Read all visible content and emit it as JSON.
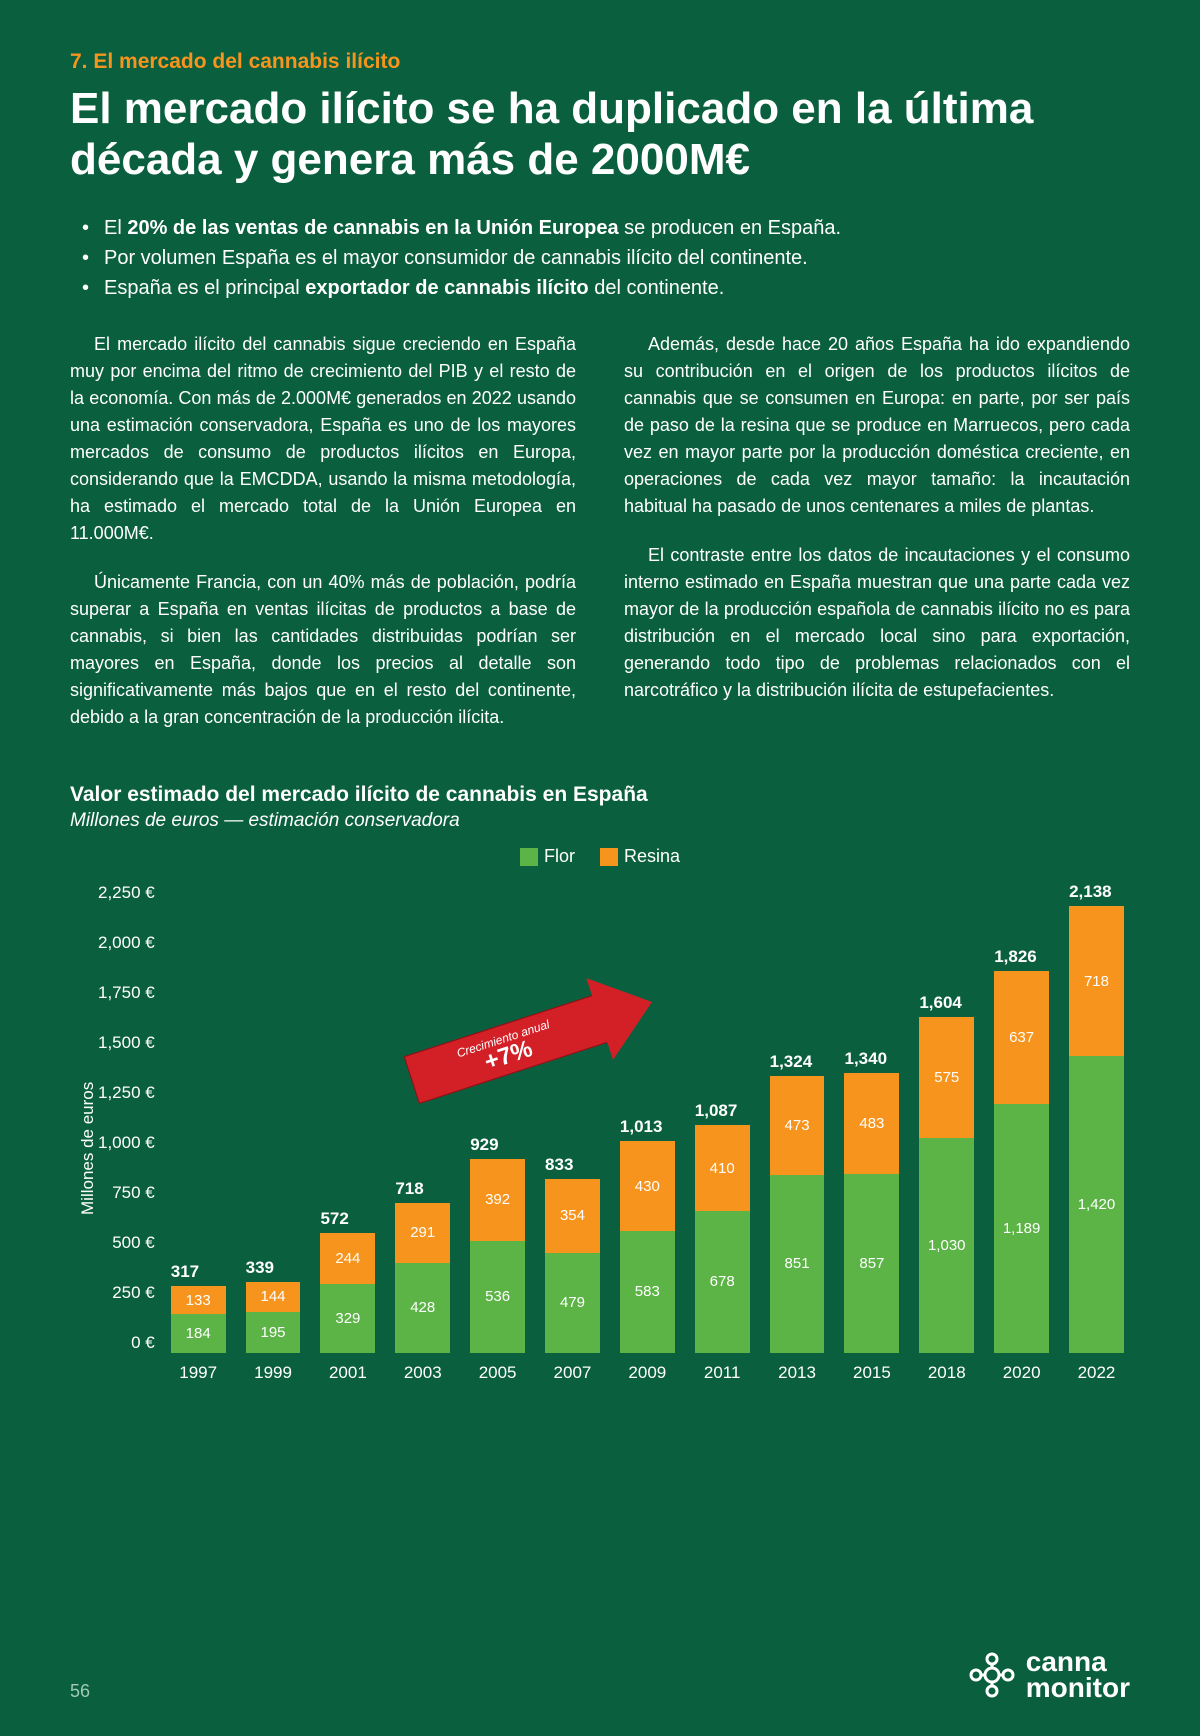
{
  "section": {
    "label": "7. El mercado del cannabis ilícito"
  },
  "headline": "El mercado ilícito se ha duplicado en la última década y genera más de 2000M€",
  "bullets": [
    {
      "prefix": "El ",
      "bold": "20% de las ventas de cannabis en la Unión Europea",
      "suffix": " se producen en España."
    },
    {
      "prefix": "Por volumen España es el mayor consumidor de cannabis ilícito del continente.",
      "bold": "",
      "suffix": ""
    },
    {
      "prefix": "España es el principal ",
      "bold": "exportador de cannabis ilícito",
      "suffix": " del continente."
    }
  ],
  "paras_left": [
    "El mercado ilícito del cannabis sigue creciendo en España muy por encima del ritmo de crecimiento del PIB y el resto de la economía. Con más de 2.000M€ generados en 2022 usando una estimación conservadora, España es uno de los mayores mercados de consumo de productos ilícitos en Europa, considerando que la EMCDDA, usando la misma metodología, ha estimado el mercado total de la Unión Europea en 11.000M€.",
    "Únicamente Francia, con un 40% más de población, podría superar a España en ventas ilícitas de productos a base de cannabis, si bien las cantidades distribuidas podrían ser mayores en España, donde los precios al detalle son significativamente más bajos que en el resto del continente, debido a la gran concentración de la producción ilícita."
  ],
  "paras_right": [
    "Además, desde hace 20 años España ha ido expandiendo su contribución en el origen de los productos ilícitos de cannabis que se consumen en Europa: en parte, por ser país de paso de la resina que se produce en Marruecos, pero cada vez en mayor parte por la producción doméstica creciente, en operaciones de cada vez mayor tamaño: la incautación habitual ha pasado de unos centenares a miles de plantas.",
    "El contraste entre los datos de incautaciones y el consumo interno estimado en España muestran que una parte cada vez mayor de la producción española de cannabis ilícito no es para distribución en el mercado local sino para exportación, generando todo tipo de problemas relacionados con el narcotráfico y la distribución ilícita de estupefacientes."
  ],
  "chart": {
    "type": "stacked-bar",
    "title": "Valor estimado del mercado ilícito de cannabis en España",
    "subtitle": "Millones de euros — estimación conservadora",
    "legend": [
      {
        "label": "Flor",
        "color": "#5cb446"
      },
      {
        "label": "Resina",
        "color": "#f7941d"
      }
    ],
    "ylabel": "Millones de euros",
    "ymax": 2250,
    "ytick_step": 250,
    "yticks": [
      "2,250 €",
      "2,000 €",
      "1,750 €",
      "1,500 €",
      "1,250 €",
      "1,000 €",
      "750 €",
      "500 €",
      "250 €",
      "0 €"
    ],
    "years": [
      "1997",
      "1999",
      "2001",
      "2003",
      "2005",
      "2007",
      "2009",
      "2011",
      "2013",
      "2015",
      "2018",
      "2020",
      "2022"
    ],
    "flor": [
      184,
      195,
      329,
      428,
      536,
      479,
      583,
      678,
      851,
      857,
      1030,
      1189,
      1420
    ],
    "resina": [
      133,
      144,
      244,
      291,
      392,
      354,
      430,
      410,
      473,
      483,
      575,
      637,
      718
    ],
    "totals": [
      "317",
      "339",
      "572",
      "718",
      "929",
      "833",
      "1,013",
      "1,087",
      "1,324",
      "1,340",
      "1,604",
      "1,826",
      "2,138"
    ],
    "flor_labels": [
      "184",
      "195",
      "329",
      "428",
      "536",
      "479",
      "583",
      "678",
      "851",
      "857",
      "1,030",
      "1,189",
      "1,420"
    ],
    "resina_labels": [
      "133",
      "144",
      "244",
      "291",
      "392",
      "354",
      "430",
      "410",
      "473",
      "483",
      "575",
      "637",
      "718"
    ],
    "colors": {
      "flor": "#5cb446",
      "resina": "#f7941d",
      "arrow": "#d32027",
      "background": "#0a5f3f",
      "text": "#ffffff"
    },
    "arrow": {
      "small": "Crecimiento anual",
      "big": "+7%"
    },
    "label_fontsize": 15,
    "title_fontsize": 21
  },
  "footer": {
    "page": "56",
    "logo_top": "canna",
    "logo_bottom": "monitor"
  }
}
